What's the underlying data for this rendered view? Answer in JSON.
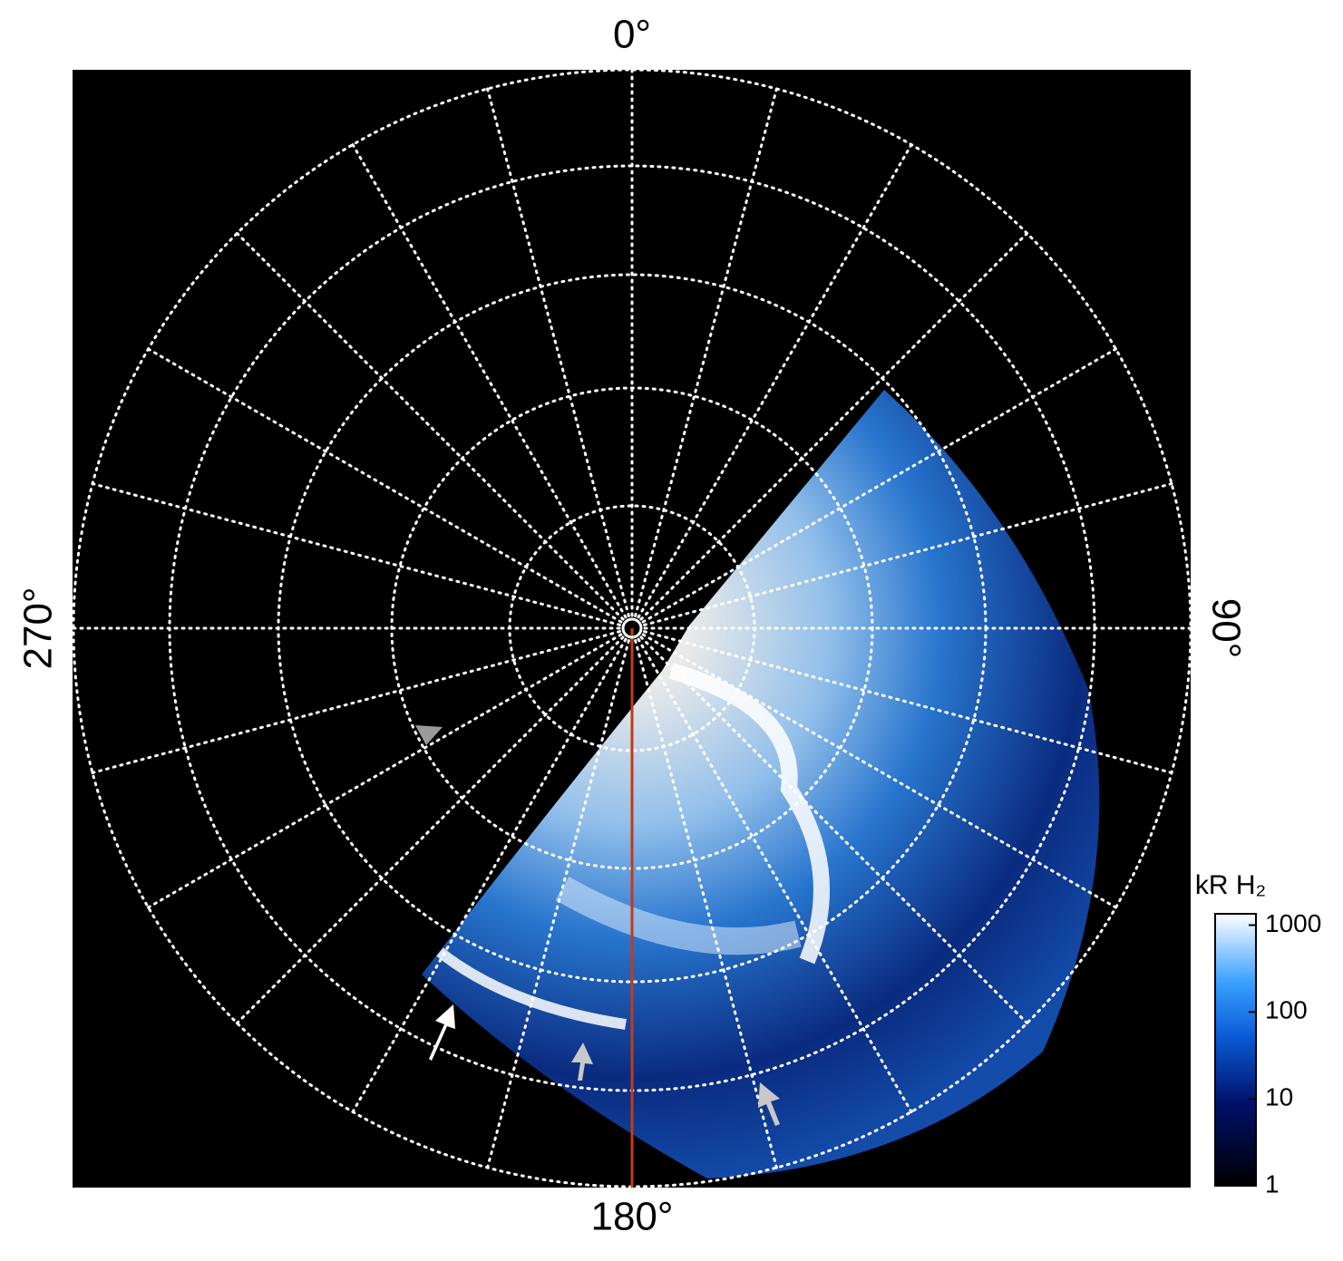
{
  "chart_data": {
    "type": "polar-image",
    "angle_ticks": [
      {
        "value": 0,
        "label": "0°"
      },
      {
        "value": 90,
        "label": "90°"
      },
      {
        "value": 180,
        "label": "180°"
      },
      {
        "value": 270,
        "label": "270°"
      }
    ],
    "grid": true,
    "colorbar": {
      "label": "kR H₂",
      "log": true,
      "clim": [
        1,
        1350
      ],
      "ticks": [
        1,
        10,
        100,
        1000
      ]
    }
  }
}
